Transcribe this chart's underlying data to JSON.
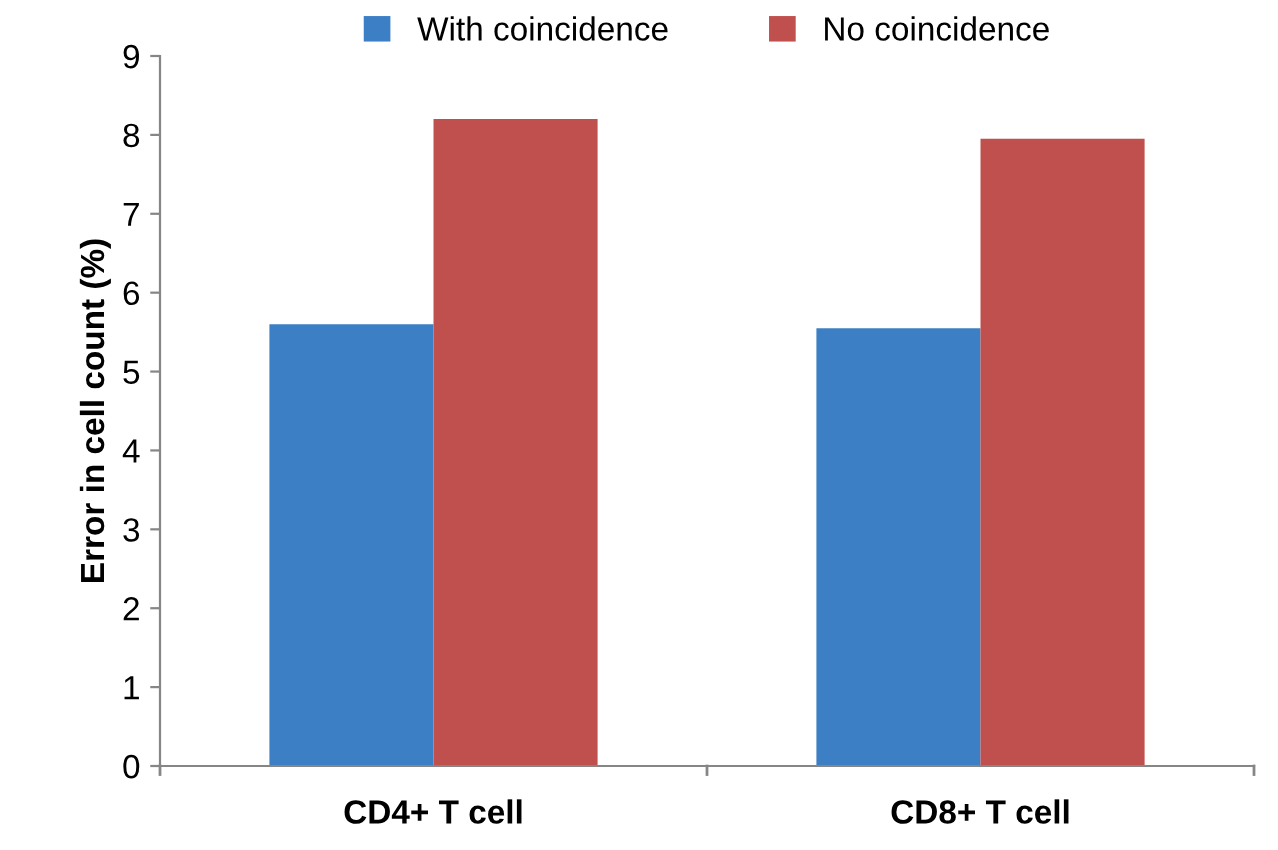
{
  "chart_data": {
    "type": "bar",
    "ylabel": "Error in cell count (%)",
    "categories": [
      "CD4+ T cell",
      "CD8+ T cell"
    ],
    "series": [
      {
        "name": "With coincidence",
        "color": "#3d7fc4",
        "values": [
          5.6,
          5.55
        ]
      },
      {
        "name": "No coincidence",
        "color": "#c0504d",
        "values": [
          8.2,
          7.95
        ]
      }
    ],
    "ylim": [
      0,
      9
    ],
    "yticks": [
      0,
      1,
      2,
      3,
      4,
      5,
      6,
      7,
      8,
      9
    ],
    "grid": false,
    "legend": "top"
  }
}
